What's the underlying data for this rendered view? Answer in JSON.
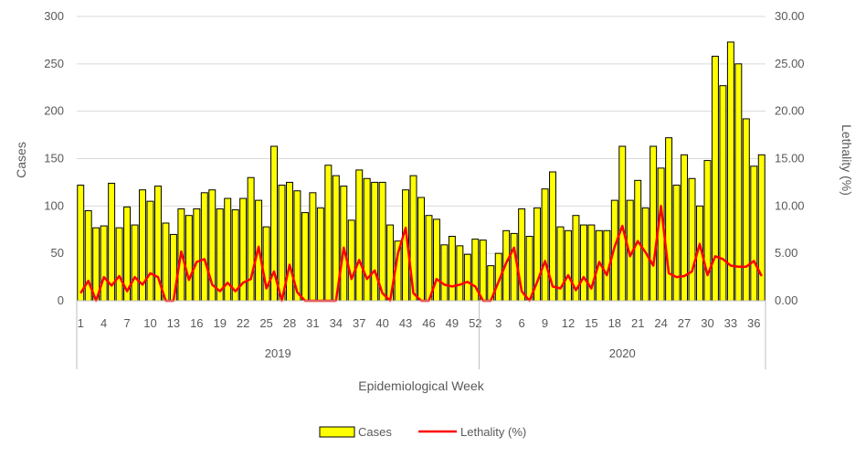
{
  "chart_data": {
    "type": "bar+line",
    "xlabel": "Epidemiological Week",
    "ylabel": "Cases",
    "y2label": "Lethality (%)",
    "ylim": [
      0,
      300
    ],
    "y2lim": [
      0,
      30
    ],
    "yticks": [
      "0",
      "50",
      "100",
      "150",
      "200",
      "250",
      "300"
    ],
    "y2ticks": [
      "0.00",
      "5.00",
      "10.00",
      "15.00",
      "20.00",
      "25.00",
      "30.00"
    ],
    "grid": true,
    "legend_position": "bottom",
    "groups": [
      {
        "label": "2019",
        "weeks": [
          1,
          2,
          3,
          4,
          5,
          6,
          7,
          8,
          9,
          10,
          11,
          12,
          13,
          14,
          15,
          16,
          17,
          18,
          19,
          20,
          21,
          22,
          23,
          24,
          25,
          26,
          27,
          28,
          29,
          30,
          31,
          32,
          33,
          34,
          35,
          36,
          37,
          38,
          39,
          40,
          41,
          42,
          43,
          44,
          45,
          46,
          47,
          48,
          49,
          50,
          51,
          52
        ]
      },
      {
        "label": "2020",
        "weeks": [
          1,
          2,
          3,
          4,
          5,
          6,
          7,
          8,
          9,
          10,
          11,
          12,
          13,
          14,
          15,
          16,
          17,
          18,
          19,
          20,
          21,
          22,
          23,
          24,
          25,
          26,
          27,
          28,
          29,
          30,
          31,
          32,
          33,
          34,
          35,
          36,
          37
        ]
      }
    ],
    "tick_labels_2019": [
      "1",
      "4",
      "7",
      "10",
      "13",
      "16",
      "19",
      "22",
      "25",
      "28",
      "31",
      "34",
      "37",
      "40",
      "43",
      "46",
      "49",
      "52"
    ],
    "tick_labels_2020": [
      "3",
      "6",
      "9",
      "12",
      "15",
      "18",
      "21",
      "24",
      "27",
      "30",
      "33",
      "36"
    ],
    "series": [
      {
        "name": "Cases",
        "type": "bar",
        "color": "#ffff00",
        "values": [
          122,
          95,
          77,
          79,
          124,
          77,
          99,
          80,
          117,
          105,
          121,
          82,
          70,
          97,
          90,
          97,
          114,
          117,
          97,
          108,
          96,
          108,
          130,
          106,
          78,
          163,
          122,
          125,
          116,
          93,
          114,
          98,
          143,
          132,
          121,
          85,
          138,
          129,
          125,
          125,
          80,
          63,
          117,
          132,
          109,
          90,
          86,
          59,
          68,
          58,
          49,
          65,
          64,
          37,
          50,
          74,
          71,
          97,
          68,
          98,
          118,
          136,
          78,
          74,
          90,
          80,
          80,
          74,
          74,
          106,
          163,
          106,
          127,
          98,
          163,
          140,
          172,
          122,
          154,
          129,
          100,
          148,
          258,
          227,
          273,
          250,
          192,
          142,
          154
        ]
      },
      {
        "name": "Lethality (%)",
        "type": "line",
        "color": "#ff0000",
        "values": [
          0.8,
          2.1,
          0,
          2.5,
          1.6,
          2.6,
          1.0,
          2.5,
          1.7,
          2.9,
          2.5,
          0,
          0,
          5.2,
          2.2,
          4.1,
          4.4,
          1.7,
          1.0,
          1.9,
          1.0,
          1.9,
          2.3,
          5.7,
          1.3,
          3.1,
          0,
          3.8,
          0.9,
          0,
          0,
          0,
          0,
          0,
          5.6,
          2.3,
          4.3,
          2.3,
          3.2,
          0.8,
          0,
          5.0,
          7.7,
          0.8,
          0,
          0,
          2.3,
          1.7,
          1.5,
          1.7,
          2.0,
          1.5,
          0,
          0,
          2.0,
          4.0,
          5.6,
          1.0,
          0,
          2.0,
          4.2,
          1.5,
          1.3,
          2.7,
          1.1,
          2.5,
          1.3,
          4.1,
          2.7,
          5.7,
          7.9,
          4.7,
          6.3,
          5.1,
          3.7,
          10.0,
          2.9,
          2.5,
          2.6,
          3.1,
          6.0,
          2.7,
          4.7,
          4.4,
          3.7,
          3.6,
          3.6,
          4.2,
          2.6
        ]
      }
    ]
  }
}
